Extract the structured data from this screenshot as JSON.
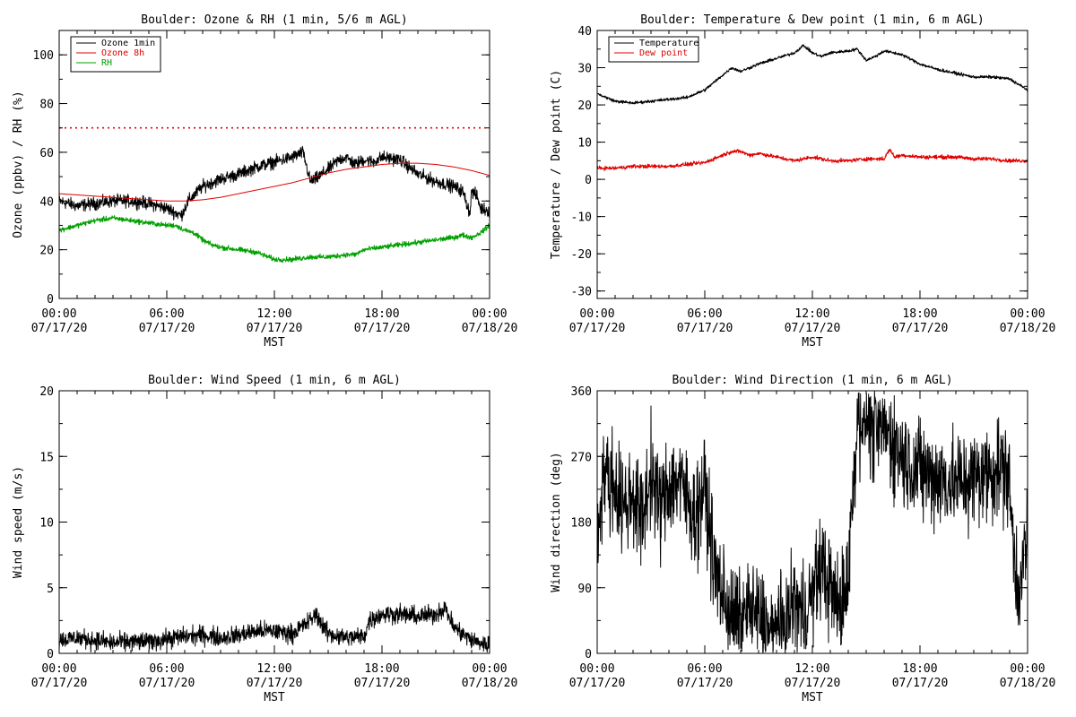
{
  "chart_data": [
    {
      "id": "ozone_rh",
      "type": "line",
      "title": "Boulder: Ozone & RH (1 min, 5/6 m AGL)",
      "xlabel": "MST",
      "ylabel": "Ozone (ppbv) / RH (%)",
      "xlim": [
        0,
        24
      ],
      "ylim": [
        0,
        110
      ],
      "yticks": [
        0,
        20,
        40,
        60,
        80,
        100
      ],
      "xticks": [
        {
          "value": 0,
          "time": "00:00",
          "date": "07/17/20"
        },
        {
          "value": 6,
          "time": "06:00",
          "date": "07/17/20"
        },
        {
          "value": 12,
          "time": "12:00",
          "date": "07/17/20"
        },
        {
          "value": 18,
          "time": "18:00",
          "date": "07/17/20"
        },
        {
          "value": 24,
          "time": "00:00",
          "date": "07/18/20"
        }
      ],
      "legend_position": "top-left",
      "reference_lines": [
        {
          "y": 70,
          "color": "#e00000",
          "style": "dotted"
        }
      ],
      "series": [
        {
          "name": "Ozone 1min",
          "color": "#000000",
          "noise": 2.2,
          "x": [
            0,
            1,
            2,
            3,
            4,
            5,
            6,
            6.8,
            7.2,
            7.6,
            8,
            9,
            10,
            11,
            12,
            13,
            13.6,
            14,
            14.3,
            15,
            15.6,
            16,
            16.5,
            17,
            17.5,
            18,
            19,
            20,
            21,
            22,
            22.5,
            22.9,
            23,
            23.3,
            23.5,
            24
          ],
          "y": [
            40,
            38,
            39,
            40,
            40,
            39,
            37,
            34,
            40,
            43,
            46,
            49,
            51,
            54,
            56,
            58,
            60,
            48,
            49,
            53,
            57,
            58,
            55,
            57,
            56,
            58,
            57,
            51,
            48,
            46,
            44,
            35,
            44,
            42,
            37,
            36
          ]
        },
        {
          "name": "Ozone 8h",
          "color": "#e00000",
          "noise": 0,
          "x": [
            0,
            1,
            2,
            3,
            4,
            5,
            6,
            7,
            8,
            9,
            10,
            11,
            12,
            13,
            14,
            15,
            16,
            17,
            18,
            19,
            20,
            21,
            22,
            23,
            24
          ],
          "y": [
            43,
            42.5,
            42,
            41.5,
            41,
            40.5,
            40,
            40,
            40.5,
            41.5,
            43,
            44.5,
            46,
            47.5,
            49.5,
            51.5,
            53,
            54,
            55,
            55.5,
            55.5,
            55,
            54,
            52.5,
            50.5
          ]
        },
        {
          "name": "RH",
          "color": "#00a000",
          "noise": 0.9,
          "x": [
            0,
            1,
            2,
            3,
            4,
            5,
            6,
            6.5,
            7,
            7.5,
            8,
            8.5,
            9,
            10,
            11,
            12,
            13,
            14,
            15,
            16,
            16.5,
            17,
            18,
            19,
            20,
            21,
            22,
            22.5,
            23,
            23.5,
            24
          ],
          "y": [
            28,
            30,
            32,
            33,
            32,
            31,
            30,
            30,
            28,
            27,
            24,
            22,
            21,
            20,
            19,
            16,
            16,
            17,
            17,
            18,
            18,
            20,
            21,
            22,
            23,
            24,
            25,
            26,
            25,
            27,
            30
          ]
        }
      ]
    },
    {
      "id": "temp_dew",
      "type": "line",
      "title": "Boulder: Temperature & Dew point (1 min, 6 m AGL)",
      "xlabel": "MST",
      "ylabel": "Temperature / Dew point (C)",
      "xlim": [
        0,
        24
      ],
      "ylim": [
        -32,
        40
      ],
      "yticks": [
        -30,
        -20,
        -10,
        0,
        10,
        20,
        30,
        40
      ],
      "xticks": [
        {
          "value": 0,
          "time": "00:00",
          "date": "07/17/20"
        },
        {
          "value": 6,
          "time": "06:00",
          "date": "07/17/20"
        },
        {
          "value": 12,
          "time": "12:00",
          "date": "07/17/20"
        },
        {
          "value": 18,
          "time": "18:00",
          "date": "07/17/20"
        },
        {
          "value": 24,
          "time": "00:00",
          "date": "07/18/20"
        }
      ],
      "legend_position": "top-left",
      "series": [
        {
          "name": "Temperature",
          "color": "#000000",
          "noise": 0.35,
          "x": [
            0,
            0.5,
            1,
            2,
            3,
            4,
            5,
            6,
            6.5,
            7,
            7.5,
            8,
            9,
            10,
            11,
            11.5,
            12,
            12.5,
            13,
            14,
            14.5,
            15,
            15.5,
            16,
            17,
            18,
            19,
            20,
            21,
            22,
            23,
            23.5,
            24
          ],
          "y": [
            23,
            22,
            21,
            20.5,
            21,
            21.5,
            22,
            24,
            26,
            28,
            30,
            29,
            31,
            32.5,
            34,
            36,
            34,
            33,
            34,
            34.5,
            35,
            32,
            33,
            34.5,
            33.5,
            31,
            29.5,
            28.5,
            27.5,
            27.5,
            27,
            25.5,
            24
          ]
        },
        {
          "name": "Dew point",
          "color": "#e00000",
          "noise": 0.45,
          "x": [
            0,
            1,
            2,
            3,
            4,
            5,
            6,
            6.5,
            7,
            7.5,
            8,
            8.5,
            9,
            10,
            11,
            12,
            13,
            14,
            15,
            16,
            16.3,
            16.6,
            17,
            18,
            19,
            20,
            21,
            22,
            23,
            24
          ],
          "y": [
            3,
            3,
            3.5,
            3.5,
            3.5,
            4,
            4.5,
            5.5,
            6.5,
            7.5,
            7.5,
            6.5,
            7,
            6,
            5,
            6,
            5,
            5,
            5.5,
            5.5,
            8,
            6,
            6.5,
            6,
            6,
            6,
            5.5,
            5.5,
            5,
            5
          ]
        }
      ]
    },
    {
      "id": "wind_speed",
      "type": "line",
      "title": "Boulder: Wind Speed (1 min, 6 m AGL)",
      "xlabel": "MST",
      "ylabel": "Wind speed (m/s)",
      "xlim": [
        0,
        24
      ],
      "ylim": [
        0,
        20
      ],
      "yticks": [
        0,
        5,
        10,
        15,
        20
      ],
      "xticks": [
        {
          "value": 0,
          "time": "00:00",
          "date": "07/17/20"
        },
        {
          "value": 6,
          "time": "06:00",
          "date": "07/17/20"
        },
        {
          "value": 12,
          "time": "12:00",
          "date": "07/17/20"
        },
        {
          "value": 18,
          "time": "18:00",
          "date": "07/17/20"
        },
        {
          "value": 24,
          "time": "00:00",
          "date": "07/18/20"
        }
      ],
      "series": [
        {
          "name": "",
          "color": "#000000",
          "noise": 0.6,
          "x": [
            0,
            1,
            2,
            3,
            4,
            5,
            6,
            7,
            8,
            9,
            10,
            11,
            12,
            13,
            14,
            14.3,
            15,
            16,
            17,
            17.3,
            18,
            19,
            20,
            21,
            21.5,
            22,
            23,
            24
          ],
          "y": [
            1,
            1.2,
            1,
            0.8,
            0.9,
            0.9,
            1.1,
            1.3,
            1.4,
            1.2,
            1.4,
            1.7,
            1.7,
            1.5,
            2.5,
            3,
            1.5,
            1.2,
            1.3,
            2.5,
            3,
            3,
            2.8,
            3,
            3.5,
            2,
            1,
            0.6
          ]
        }
      ]
    },
    {
      "id": "wind_direction",
      "type": "line",
      "title": "Boulder: Wind Direction (1 min, 6 m AGL)",
      "xlabel": "MST",
      "ylabel": "Wind direction (deg)",
      "xlim": [
        0,
        24
      ],
      "ylim": [
        0,
        360
      ],
      "yticks": [
        0,
        90,
        180,
        270,
        360
      ],
      "xticks": [
        {
          "value": 0,
          "time": "00:00",
          "date": "07/17/20"
        },
        {
          "value": 6,
          "time": "06:00",
          "date": "07/17/20"
        },
        {
          "value": 12,
          "time": "12:00",
          "date": "07/17/20"
        },
        {
          "value": 18,
          "time": "18:00",
          "date": "07/17/20"
        },
        {
          "value": 24,
          "time": "00:00",
          "date": "07/18/20"
        }
      ],
      "series": [
        {
          "name": "",
          "color": "#000000",
          "noise": 60,
          "x": [
            0,
            0.3,
            0.6,
            1,
            1.5,
            2,
            2.5,
            3,
            3.5,
            4,
            4.5,
            5,
            5.5,
            6,
            6.5,
            7,
            7.5,
            8,
            8.5,
            9,
            9.5,
            10,
            10.5,
            11,
            11.5,
            12,
            12.5,
            13,
            13.5,
            14,
            14.5,
            15,
            15.5,
            16,
            16.5,
            17,
            17.5,
            18,
            18.5,
            19,
            20,
            21,
            22,
            22.5,
            22.9,
            23.3,
            23.6,
            24
          ],
          "y": [
            150,
            250,
            240,
            230,
            200,
            220,
            180,
            250,
            200,
            230,
            240,
            210,
            190,
            230,
            120,
            80,
            50,
            40,
            60,
            50,
            30,
            20,
            40,
            70,
            50,
            80,
            120,
            90,
            60,
            110,
            320,
            330,
            300,
            310,
            290,
            270,
            260,
            250,
            245,
            240,
            235,
            240,
            250,
            255,
            250,
            120,
            90,
            170
          ]
        }
      ]
    }
  ]
}
